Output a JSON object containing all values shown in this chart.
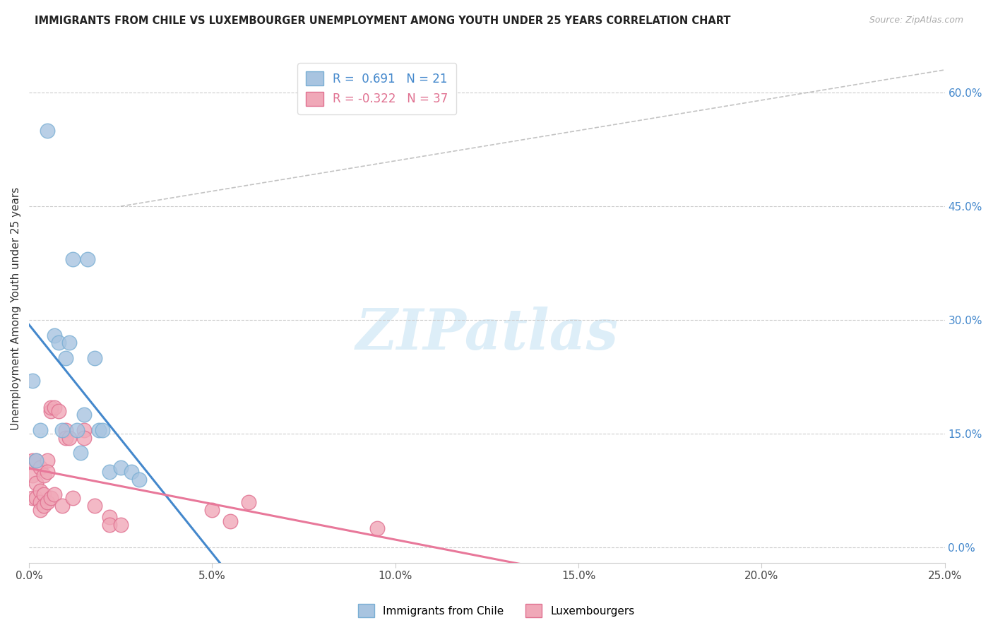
{
  "title": "IMMIGRANTS FROM CHILE VS LUXEMBOURGER UNEMPLOYMENT AMONG YOUTH UNDER 25 YEARS CORRELATION CHART",
  "source": "Source: ZipAtlas.com",
  "ylabel": "Unemployment Among Youth under 25 years",
  "xlabel_ticks": [
    0.0,
    5.0,
    10.0,
    15.0,
    20.0,
    25.0
  ],
  "ylabel_ticks_right": [
    0.0,
    15.0,
    30.0,
    45.0,
    60.0
  ],
  "R_chile": 0.691,
  "N_chile": 21,
  "R_lux": -0.322,
  "N_lux": 37,
  "legend_labels": [
    "Immigrants from Chile",
    "Luxembourgers"
  ],
  "chile_color": "#a8c4e0",
  "chile_edge": "#7aafd4",
  "lux_color": "#f0a8b8",
  "lux_edge": "#e07090",
  "chile_line_color": "#4488cc",
  "lux_line_color": "#e8789a",
  "background_color": "#ffffff",
  "chile_x": [
    0.001,
    0.002,
    0.003,
    0.005,
    0.007,
    0.008,
    0.009,
    0.01,
    0.011,
    0.012,
    0.013,
    0.014,
    0.015,
    0.016,
    0.018,
    0.019,
    0.02,
    0.022,
    0.025,
    0.028,
    0.03
  ],
  "chile_y": [
    0.22,
    0.115,
    0.155,
    0.55,
    0.28,
    0.27,
    0.155,
    0.25,
    0.27,
    0.38,
    0.155,
    0.125,
    0.175,
    0.38,
    0.25,
    0.155,
    0.155,
    0.1,
    0.105,
    0.1,
    0.09
  ],
  "lux_x": [
    0.001,
    0.001,
    0.001,
    0.002,
    0.002,
    0.002,
    0.003,
    0.003,
    0.003,
    0.003,
    0.004,
    0.004,
    0.004,
    0.005,
    0.005,
    0.005,
    0.006,
    0.006,
    0.006,
    0.007,
    0.007,
    0.008,
    0.009,
    0.01,
    0.01,
    0.011,
    0.012,
    0.015,
    0.015,
    0.018,
    0.022,
    0.022,
    0.025,
    0.05,
    0.055,
    0.06,
    0.095
  ],
  "lux_y": [
    0.115,
    0.095,
    0.065,
    0.115,
    0.085,
    0.065,
    0.105,
    0.075,
    0.06,
    0.05,
    0.095,
    0.07,
    0.055,
    0.115,
    0.1,
    0.06,
    0.18,
    0.185,
    0.065,
    0.185,
    0.07,
    0.18,
    0.055,
    0.155,
    0.145,
    0.145,
    0.065,
    0.155,
    0.145,
    0.055,
    0.04,
    0.03,
    0.03,
    0.05,
    0.035,
    0.06,
    0.025
  ]
}
